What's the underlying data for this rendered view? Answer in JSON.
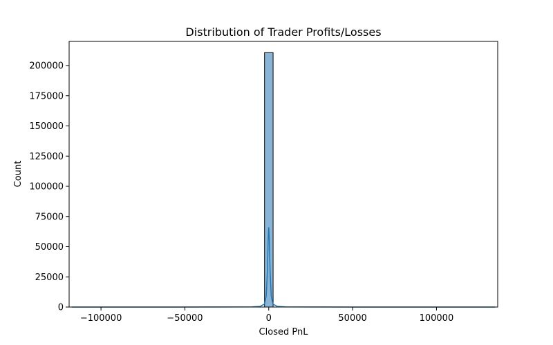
{
  "chart_data": {
    "type": "bar",
    "title": "Distribution of Trader Profits/Losses",
    "xlabel": "Closed PnL",
    "ylabel": "Count",
    "xlim": [
      -119000,
      136500
    ],
    "ylim": [
      0,
      220000
    ],
    "x_ticks": [
      -100000,
      -50000,
      0,
      50000,
      100000
    ],
    "x_tick_labels": [
      "−100000",
      "−50000",
      "0",
      "50000",
      "100000"
    ],
    "y_ticks": [
      0,
      25000,
      50000,
      75000,
      100000,
      125000,
      150000,
      175000,
      200000
    ],
    "y_tick_labels": [
      "0",
      "25000",
      "50000",
      "75000",
      "100000",
      "125000",
      "150000",
      "175000",
      "200000"
    ],
    "bins": [
      {
        "x0": -2500,
        "x1": 2600,
        "value": 210700
      }
    ],
    "kde": {
      "x": [
        -117500,
        -60000,
        -10000,
        -5000,
        -2500,
        -1500,
        -800,
        -300,
        0,
        300,
        800,
        1500,
        2500,
        5000,
        10000,
        60000,
        135000
      ],
      "y": [
        0,
        0,
        150,
        600,
        2500,
        9000,
        30000,
        58000,
        65800,
        58000,
        30000,
        9000,
        2500,
        600,
        150,
        0,
        0
      ]
    },
    "grid": false,
    "legend": "none",
    "colors": {
      "bar_fill": "#8ab4d6",
      "bar_edge": "#000000",
      "kde_line": "#1f77b4"
    }
  }
}
